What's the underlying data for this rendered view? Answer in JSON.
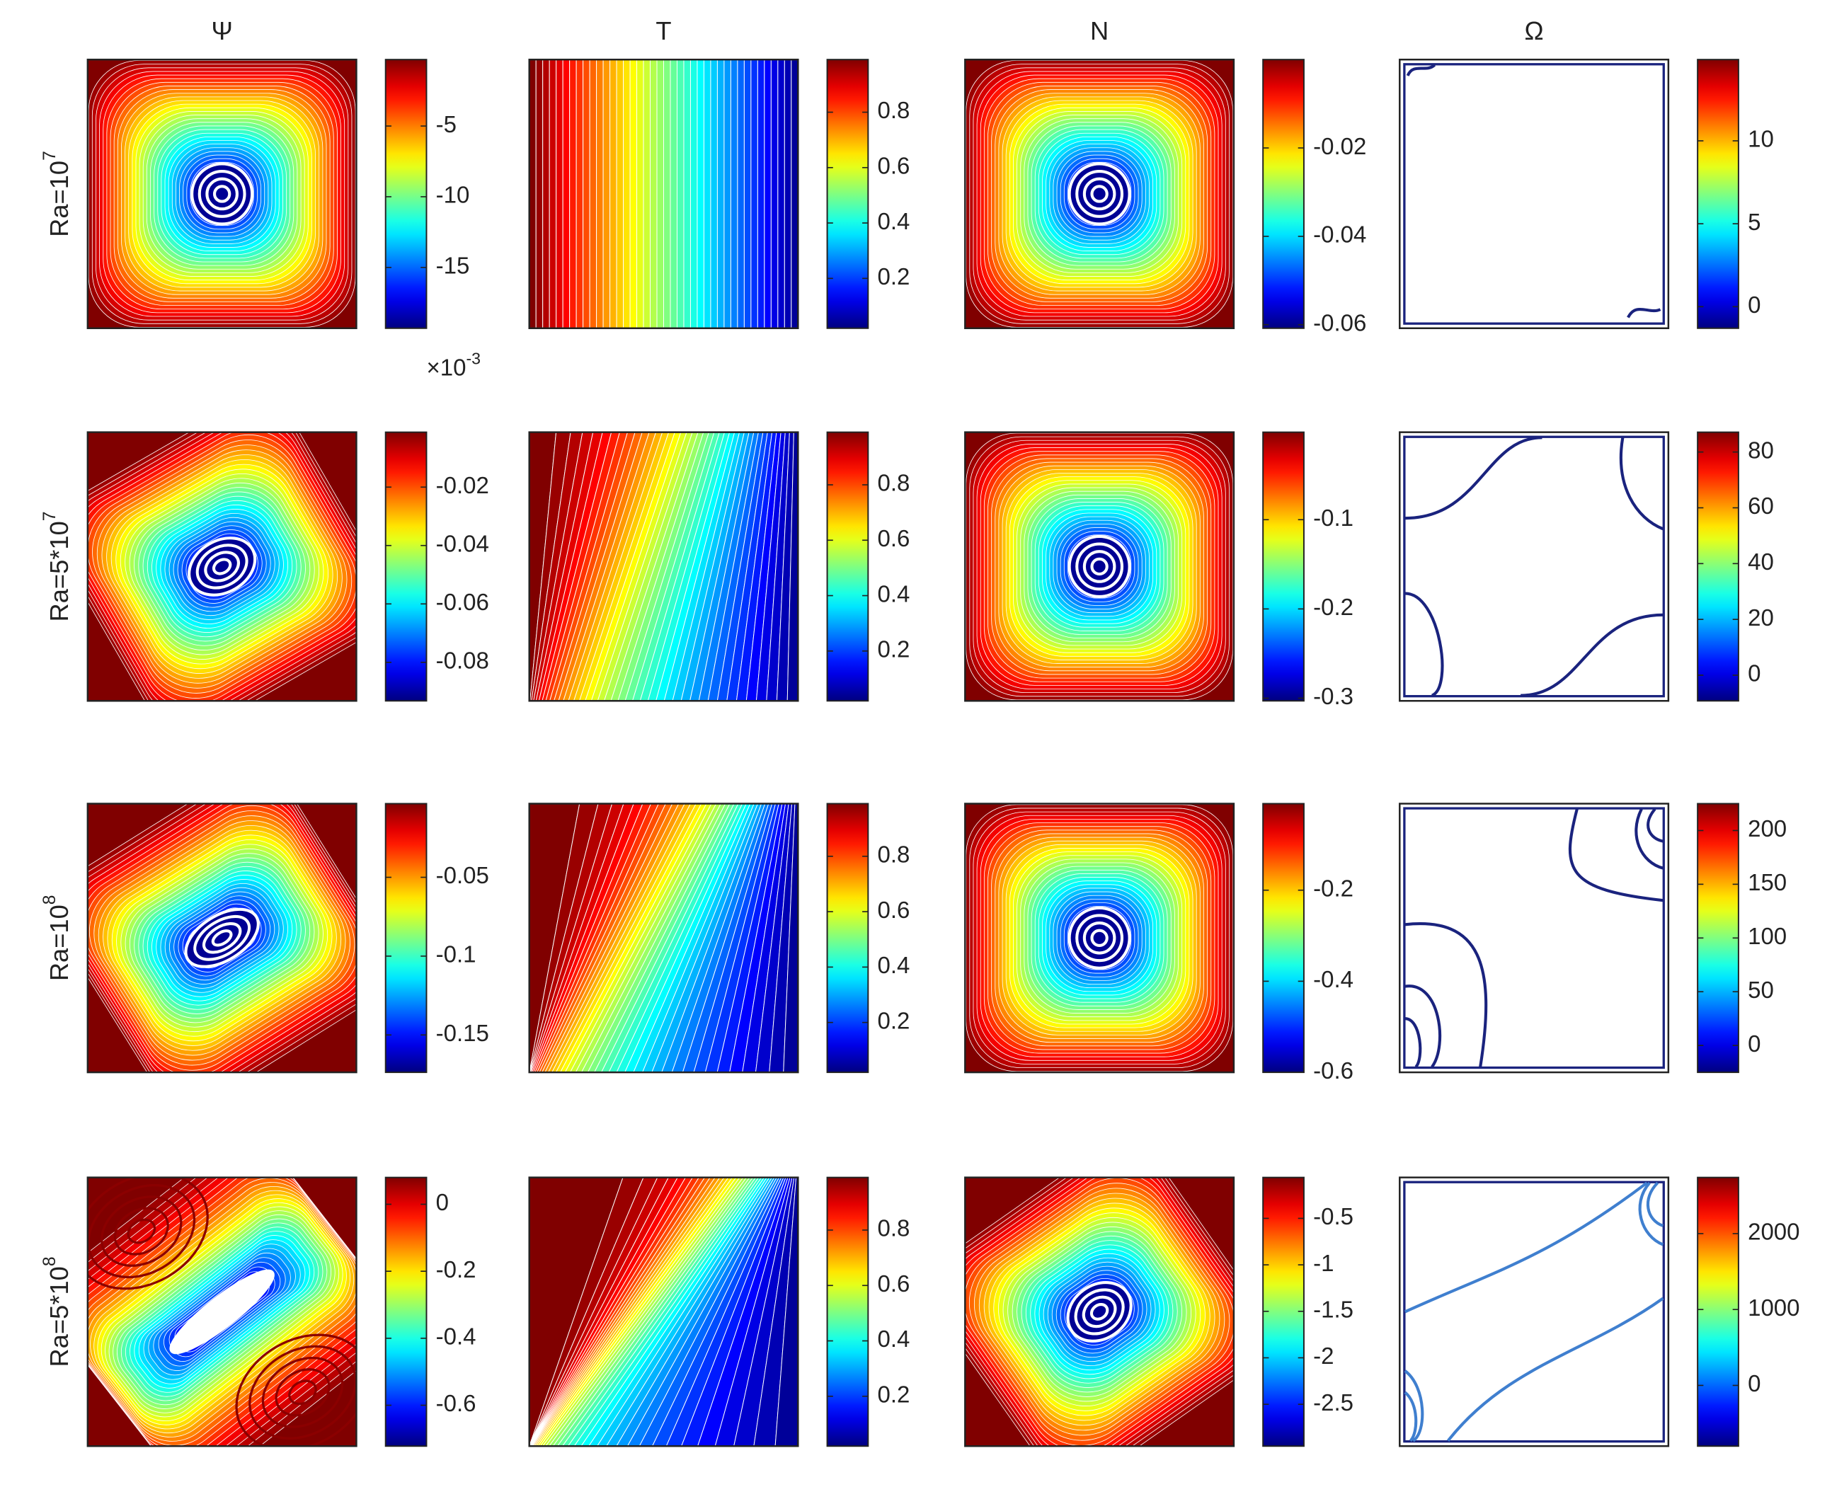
{
  "chart_data": [
    {
      "type": "contour",
      "title": "Ψ",
      "ylabel": "Ra=10",
      "ylabel_exponent": "7",
      "colorbar": {
        "lim": [
          -19.3,
          -0.3
        ],
        "ticks": [
          -15,
          -10,
          -5
        ],
        "multiplier": "×10",
        "multiplier_exponent": "-3"
      }
    },
    {
      "type": "contour",
      "title": "T",
      "colorbar": {
        "lim": [
          0.02,
          0.99
        ],
        "ticks": [
          0.2,
          0.4,
          0.6,
          0.8
        ]
      }
    },
    {
      "type": "contour",
      "title": "N",
      "colorbar": {
        "lim": [
          -0.0608,
          0
        ],
        "ticks": [
          -0.06,
          -0.04,
          -0.02
        ]
      }
    },
    {
      "type": "contour",
      "title": "Ω",
      "colorbar": {
        "lim": [
          -1.3,
          14.9
        ],
        "ticks": [
          0,
          5,
          10
        ]
      }
    },
    {
      "type": "contour",
      "ylabel": "Ra=5*10",
      "ylabel_exponent": "7",
      "colorbar": {
        "lim": [
          -0.0932,
          -0.0012
        ],
        "ticks": [
          -0.08,
          -0.06,
          -0.04,
          -0.02
        ]
      }
    },
    {
      "type": "contour",
      "colorbar": {
        "lim": [
          0.02,
          0.99
        ],
        "ticks": [
          0.2,
          0.4,
          0.6,
          0.8
        ]
      }
    },
    {
      "type": "contour",
      "colorbar": {
        "lim": [
          -0.303,
          -0.002
        ],
        "ticks": [
          -0.3,
          -0.2,
          -0.1
        ]
      }
    },
    {
      "type": "contour",
      "colorbar": {
        "lim": [
          -9.2,
          87.1
        ],
        "ticks": [
          0,
          20,
          40,
          60,
          80
        ]
      }
    },
    {
      "type": "contour",
      "ylabel": "Ra=10",
      "ylabel_exponent": "8",
      "colorbar": {
        "lim": [
          -0.1737,
          -0.0033
        ],
        "ticks": [
          -0.15,
          -0.1,
          -0.05
        ]
      }
    },
    {
      "type": "contour",
      "colorbar": {
        "lim": [
          0.02,
          0.99
        ],
        "ticks": [
          0.2,
          0.4,
          0.6,
          0.8
        ]
      }
    },
    {
      "type": "contour",
      "colorbar": {
        "lim": [
          -0.6,
          -0.01
        ],
        "ticks": [
          -0.6,
          -0.4,
          -0.2
        ]
      }
    },
    {
      "type": "contour",
      "colorbar": {
        "lim": [
          -25,
          225
        ],
        "ticks": [
          0,
          50,
          100,
          150,
          200
        ]
      }
    },
    {
      "type": "contour",
      "ylabel": "Ra=5*10",
      "ylabel_exponent": "8",
      "colorbar": {
        "lim": [
          -0.722,
          0.08
        ],
        "ticks": [
          -0.6,
          -0.4,
          -0.2,
          0
        ]
      }
    },
    {
      "type": "contour",
      "colorbar": {
        "lim": [
          0.02,
          0.99
        ],
        "ticks": [
          0.2,
          0.4,
          0.6,
          0.8
        ]
      }
    },
    {
      "type": "contour",
      "colorbar": {
        "lim": [
          -2.95,
          -0.06
        ],
        "ticks": [
          -2.5,
          -2,
          -1.5,
          -1,
          -0.5
        ]
      }
    },
    {
      "type": "contour",
      "colorbar": {
        "lim": [
          -800,
          2740
        ],
        "ticks": [
          0,
          1000,
          2000
        ]
      }
    }
  ]
}
